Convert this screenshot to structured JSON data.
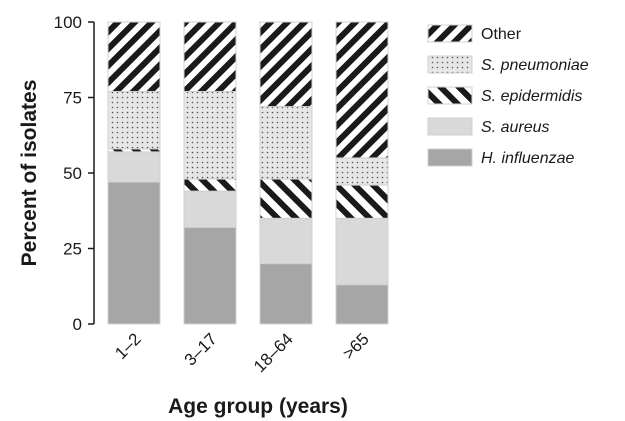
{
  "chart_data": {
    "type": "bar",
    "stacked": true,
    "title": "",
    "xlabel": "Age group (years)",
    "ylabel": "Percent of isolates",
    "ylim": [
      0,
      100
    ],
    "yticks": [
      0,
      25,
      50,
      75,
      100
    ],
    "grid": false,
    "legend_position": "right",
    "categories": [
      "1–2",
      "3–17",
      "18–64",
      ">65"
    ],
    "series": [
      {
        "name": "H. influenzae",
        "italic": true,
        "color": "#a6a6a6",
        "pattern": "solid",
        "values": [
          47,
          32,
          20,
          13
        ]
      },
      {
        "name": "S. aureus",
        "italic": true,
        "color": "#d9d9d9",
        "pattern": "solid",
        "values": [
          10,
          12,
          15,
          22
        ]
      },
      {
        "name": "S. epidermidis",
        "italic": true,
        "color": "#ffffff",
        "pattern": "bold-diagonal",
        "values": [
          1,
          4,
          13,
          11
        ]
      },
      {
        "name": "S. pneumoniae",
        "italic": true,
        "color": "#e6e6e6",
        "pattern": "dots",
        "values": [
          19,
          29,
          24,
          9
        ]
      },
      {
        "name": "Other",
        "italic": false,
        "color": "#ffffff",
        "pattern": "bold-diagonal",
        "values": [
          23,
          23,
          28,
          45
        ]
      }
    ],
    "legend_order": [
      "Other",
      "S. pneumoniae",
      "S. epidermidis",
      "S. aureus",
      "H. influenzae"
    ]
  }
}
